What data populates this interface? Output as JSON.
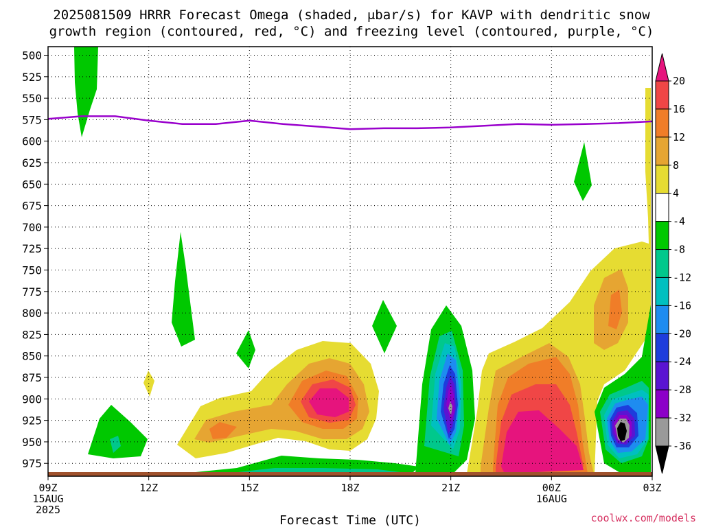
{
  "title": {
    "line1": "2025081509 HRRR Forecast Omega (shaded, μbar/s) for KAVP with dendritic snow",
    "line2": "growth region (contoured, red, °C) and freezing level (contoured, purple, °C)"
  },
  "credit": "coolwx.com/models",
  "chart_data": {
    "type": "heatmap",
    "title": "2025081509 HRRR Forecast Omega (shaded, μbar/s) for KAVP with dendritic snow growth region (contoured, red, °C) and freezing level (contoured, purple, °C)",
    "xlabel": "Forecast Time (UTC)",
    "ylabel": "",
    "x_range_hours": [
      0,
      18
    ],
    "y_range_hPa": [
      490,
      990
    ],
    "y_ticks": [
      500,
      525,
      550,
      575,
      600,
      625,
      650,
      675,
      700,
      725,
      750,
      775,
      800,
      825,
      850,
      875,
      900,
      925,
      950,
      975
    ],
    "x_ticks": [
      {
        "hour": 0,
        "lines": [
          "09Z",
          "15AUG",
          "2025"
        ]
      },
      {
        "hour": 3,
        "lines": [
          "12Z"
        ]
      },
      {
        "hour": 6,
        "lines": [
          "15Z"
        ]
      },
      {
        "hour": 9,
        "lines": [
          "18Z"
        ]
      },
      {
        "hour": 12,
        "lines": [
          "21Z"
        ]
      },
      {
        "hour": 15,
        "lines": [
          "00Z",
          "16AUG"
        ]
      },
      {
        "hour": 18,
        "lines": [
          "03Z"
        ]
      }
    ],
    "grid": true,
    "colorbar": {
      "levels": [
        -36,
        -32,
        -28,
        -24,
        -20,
        -16,
        -12,
        -8,
        -4,
        4,
        8,
        12,
        16,
        20
      ],
      "colors": [
        "#000000",
        "#9a9a9a",
        "#8c00c8",
        "#5a14d2",
        "#1e3cdc",
        "#1e8cf0",
        "#00c0c0",
        "#00c88c",
        "#00c800",
        "#ffffff",
        "#e6dc32",
        "#e6a532",
        "#f07d28",
        "#f04646",
        "#e6147d"
      ],
      "labels": [
        "20",
        "16",
        "12",
        "8",
        "4",
        "-4",
        "-8",
        "-12",
        "-16",
        "-20",
        "-24",
        "-28",
        "-32",
        "-36"
      ]
    },
    "freezing_level": {
      "hours": [
        0,
        1,
        2,
        3,
        4,
        5,
        6,
        7,
        8,
        9,
        10,
        11,
        12,
        13,
        14,
        15,
        16,
        17,
        18
      ],
      "hPa": [
        574,
        571,
        571,
        576,
        580,
        580,
        576,
        580,
        583,
        586,
        585,
        585,
        584,
        582,
        580,
        581,
        580,
        579,
        577
      ]
    }
  }
}
